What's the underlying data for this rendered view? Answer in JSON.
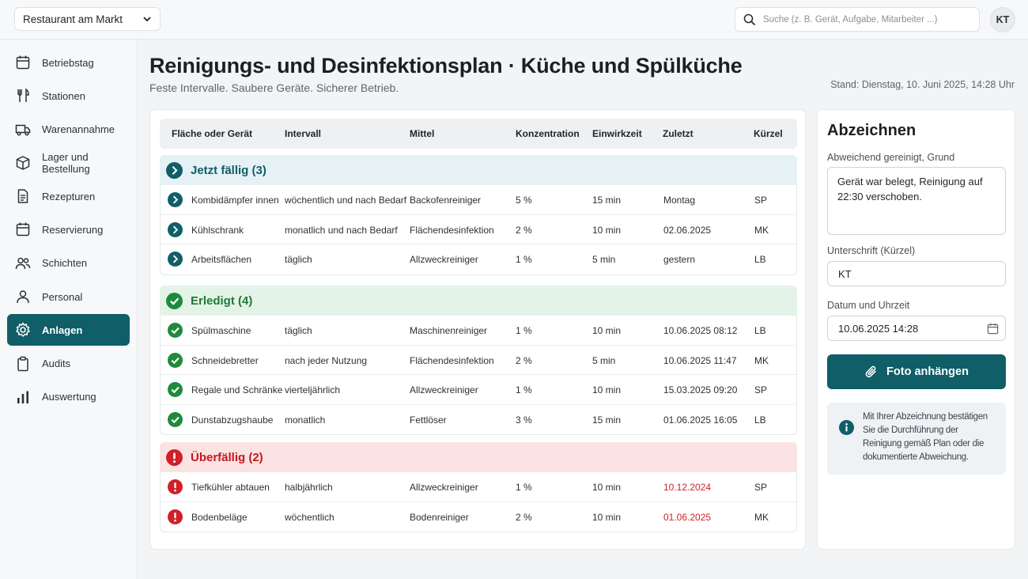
{
  "topbar": {
    "venue": "Restaurant am Markt",
    "search_placeholder": "Suche (z. B. Gerät, Aufgabe, Mitarbeiter ...)",
    "avatar": "KT"
  },
  "sidebar": {
    "items": [
      {
        "label": "Betriebstag",
        "icon": "calendar-icon"
      },
      {
        "label": "Stationen",
        "icon": "fork-knife-icon"
      },
      {
        "label": "Warenannahme",
        "icon": "truck-icon"
      },
      {
        "label": "Lager und Bestellung",
        "icon": "box-icon"
      },
      {
        "label": "Rezepturen",
        "icon": "document-icon"
      },
      {
        "label": "Reservierung",
        "icon": "calendar-icon"
      },
      {
        "label": "Schichten",
        "icon": "people-icon"
      },
      {
        "label": "Personal",
        "icon": "person-icon"
      },
      {
        "label": "Anlagen",
        "icon": "gear-icon",
        "active": true
      },
      {
        "label": "Audits",
        "icon": "clipboard-icon"
      },
      {
        "label": "Auswertung",
        "icon": "bar-chart-icon"
      }
    ]
  },
  "header": {
    "title": "Reinigungs- und Desinfektionsplan · Küche und Spülküche",
    "subtitle": "Feste Intervalle. Saubere Geräte. Sicherer Betrieb.",
    "stand": "Stand: Dienstag, 10. Juni 2025, 14:28 Uhr"
  },
  "table": {
    "columns": [
      "Fläche oder Gerät",
      "Intervall",
      "Mittel",
      "Konzentration",
      "Einwirkzeit",
      "Zuletzt",
      "Kürzel"
    ],
    "groups": [
      {
        "title": "Jetzt fällig (3)",
        "status": "due",
        "rows": [
          [
            "Kombidämpfer innen",
            "wöchentlich und nach Bedarf",
            "Backofenreiniger",
            "5 %",
            "15 min",
            "Montag",
            "SP"
          ],
          [
            "Kühlschrank",
            "monatlich und nach Bedarf",
            "Flächendesinfektion",
            "2 %",
            "10 min",
            "02.06.2025",
            "MK"
          ],
          [
            "Arbeitsflächen",
            "täglich",
            "Allzweckreiniger",
            "1 %",
            "5 min",
            "gestern",
            "LB"
          ]
        ]
      },
      {
        "title": "Erledigt (4)",
        "status": "done",
        "rows": [
          [
            "Spülmaschine",
            "täglich",
            "Maschinenreiniger",
            "1 %",
            "10 min",
            "10.06.2025 08:12",
            "LB"
          ],
          [
            "Schneidebretter",
            "nach jeder Nutzung",
            "Flächendesinfektion",
            "2 %",
            "5 min",
            "10.06.2025 11:47",
            "MK"
          ],
          [
            "Regale und Schränke",
            "vierteljährlich",
            "Allzweckreiniger",
            "1 %",
            "10 min",
            "15.03.2025 09:20",
            "SP"
          ],
          [
            "Dunstabzugshaube",
            "monatlich",
            "Fettlöser",
            "3 %",
            "15 min",
            "01.06.2025 16:05",
            "LB"
          ]
        ]
      },
      {
        "title": "Überfällig (2)",
        "status": "overdue",
        "rows": [
          [
            "Tiefkühler abtauen",
            "halbjährlich",
            "Allzweckreiniger",
            "1 %",
            "10 min",
            "10.12.2024",
            "SP"
          ],
          [
            "Bodenbeläge",
            "wöchentlich",
            "Bodenreiniger",
            "2 %",
            "10 min",
            "01.06.2025",
            "MK"
          ]
        ]
      }
    ]
  },
  "sign": {
    "title": "Abzeichnen",
    "reason_label": "Abweichend gereinigt, Grund",
    "reason_value": "Gerät war belegt, Reinigung auf 22:30 verschoben.",
    "signature_label": "Unterschrift (Kürzel)",
    "signature_value": "KT",
    "datetime_label": "Datum und Uhrzeit",
    "datetime_value": "10.06.2025 14:28",
    "photo_button": "Foto anhängen",
    "info_text": "Mit Ihrer Abzeichnung bestätigen Sie die Durchführung der Reinigung gemäß Plan oder die dokumentierte Abweichung."
  },
  "colors": {
    "accent": "#0f5e68",
    "done": "#1f7a35",
    "overdue": "#d0202a"
  }
}
